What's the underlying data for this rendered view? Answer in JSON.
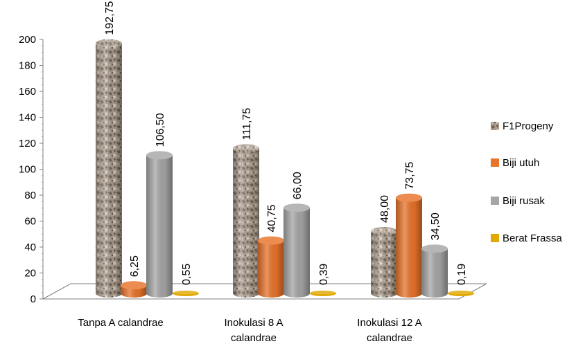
{
  "chart_data": {
    "type": "bar",
    "categories": [
      "Tanpa A calandrae",
      "Inokulasi 8 A calandrae",
      "Inokulasi 12 A calandrae"
    ],
    "category_lines": [
      [
        "Tanpa A calandrae"
      ],
      [
        "Inokulasi 8 A",
        "calandrae"
      ],
      [
        "Inokulasi 12 A",
        "calandrae"
      ]
    ],
    "series": [
      {
        "name": "F1Progeny",
        "values": [
          192.75,
          111.75,
          48.0
        ],
        "labels": [
          "192,75",
          "111,75",
          "48,00"
        ],
        "color": "#a89a8a",
        "pattern": "stone"
      },
      {
        "name": "Biji utuh",
        "values": [
          6.25,
          40.75,
          73.75
        ],
        "labels": [
          "6,25",
          "40,75",
          "73,75"
        ],
        "color": "#e8732a"
      },
      {
        "name": "Biji rusak",
        "values": [
          106.5,
          66.0,
          34.5
        ],
        "labels": [
          "106,50",
          "66,00",
          "34,50"
        ],
        "color": "#a6a6a6"
      },
      {
        "name": "Berat Frassa",
        "values": [
          0.55,
          0.39,
          0.19
        ],
        "labels": [
          "0,55",
          "0,39",
          "0,19"
        ],
        "color": "#e0a800"
      }
    ],
    "ylim": [
      0,
      200
    ],
    "yticks": [
      0,
      20,
      40,
      60,
      80,
      100,
      120,
      140,
      160,
      180,
      200
    ],
    "title": "",
    "xlabel": "",
    "ylabel": "",
    "legend": "right",
    "grid": false,
    "style": "3d-cylinder"
  }
}
